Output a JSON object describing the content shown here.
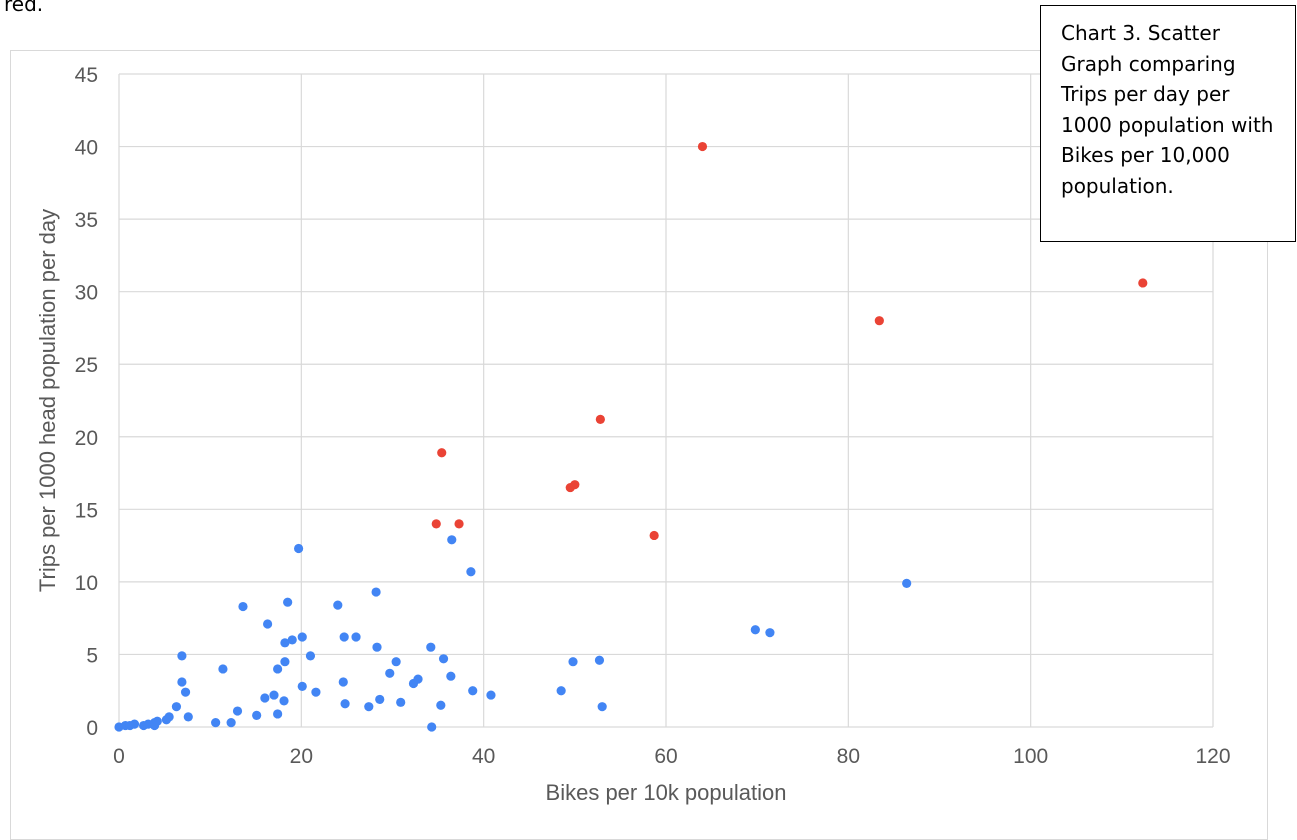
{
  "top_fragment": "red.",
  "caption": "Chart 3. Scatter Graph comparing Trips per day per 1000 population with Bikes per 10,000 population.",
  "colors": {
    "series_blue": "#4285f4",
    "series_red": "#ea4335",
    "grid": "#d9d9d9",
    "axis_text": "#595959"
  },
  "chart_data": {
    "type": "scatter",
    "xlabel": "Bikes per 10k population",
    "ylabel": "Trips per 1000 head population per day",
    "xlim": [
      0,
      120
    ],
    "ylim": [
      0,
      45
    ],
    "x_ticks": [
      "0",
      "20",
      "40",
      "60",
      "80",
      "100",
      "120"
    ],
    "y_ticks": [
      "0",
      "5",
      "10",
      "15",
      "20",
      "25",
      "30",
      "35",
      "40",
      "45"
    ],
    "grid": true,
    "legend": "none",
    "series": [
      {
        "color": "#4285f4",
        "points": [
          [
            0.0,
            0.0
          ],
          [
            0.7,
            0.1
          ],
          [
            1.2,
            0.1
          ],
          [
            1.7,
            0.2
          ],
          [
            2.7,
            0.1
          ],
          [
            3.2,
            0.2
          ],
          [
            3.9,
            0.3
          ],
          [
            3.9,
            0.1
          ],
          [
            4.2,
            0.4
          ],
          [
            5.2,
            0.5
          ],
          [
            5.5,
            0.7
          ],
          [
            6.3,
            1.4
          ],
          [
            6.9,
            4.9
          ],
          [
            6.9,
            3.1
          ],
          [
            7.3,
            2.4
          ],
          [
            7.6,
            0.7
          ],
          [
            10.6,
            0.3
          ],
          [
            11.4,
            4.0
          ],
          [
            12.3,
            0.3
          ],
          [
            13.0,
            1.1
          ],
          [
            13.6,
            8.3
          ],
          [
            15.1,
            0.8
          ],
          [
            16.0,
            2.0
          ],
          [
            16.3,
            7.1
          ],
          [
            17.0,
            2.2
          ],
          [
            17.4,
            4.0
          ],
          [
            17.4,
            0.9
          ],
          [
            18.1,
            1.8
          ],
          [
            18.2,
            5.8
          ],
          [
            18.2,
            4.5
          ],
          [
            18.5,
            8.6
          ],
          [
            19.0,
            6.0
          ],
          [
            19.7,
            12.3
          ],
          [
            20.1,
            6.2
          ],
          [
            20.1,
            2.8
          ],
          [
            21.0,
            4.9
          ],
          [
            21.6,
            2.4
          ],
          [
            24.0,
            8.4
          ],
          [
            24.6,
            3.1
          ],
          [
            24.7,
            6.2
          ],
          [
            24.8,
            1.6
          ],
          [
            26.0,
            6.2
          ],
          [
            27.4,
            1.4
          ],
          [
            28.2,
            9.3
          ],
          [
            28.3,
            5.5
          ],
          [
            28.6,
            1.9
          ],
          [
            29.7,
            3.7
          ],
          [
            30.4,
            4.5
          ],
          [
            30.9,
            1.7
          ],
          [
            32.3,
            3.0
          ],
          [
            32.8,
            3.3
          ],
          [
            34.2,
            5.5
          ],
          [
            34.3,
            0.0
          ],
          [
            35.3,
            1.5
          ],
          [
            35.6,
            4.7
          ],
          [
            36.4,
            3.5
          ],
          [
            36.5,
            12.9
          ],
          [
            38.6,
            10.7
          ],
          [
            38.8,
            2.5
          ],
          [
            40.8,
            2.2
          ],
          [
            48.5,
            2.5
          ],
          [
            49.8,
            4.5
          ],
          [
            52.7,
            4.6
          ],
          [
            53.0,
            1.4
          ],
          [
            69.8,
            6.7
          ],
          [
            71.4,
            6.5
          ],
          [
            86.4,
            9.9
          ]
        ]
      },
      {
        "color": "#ea4335",
        "points": [
          [
            34.8,
            14.0
          ],
          [
            35.4,
            18.9
          ],
          [
            37.3,
            14.0
          ],
          [
            49.5,
            16.5
          ],
          [
            50.0,
            16.7
          ],
          [
            52.8,
            21.2
          ],
          [
            58.7,
            13.2
          ],
          [
            64.0,
            40.0
          ],
          [
            83.4,
            28.0
          ],
          [
            112.3,
            30.6
          ]
        ]
      }
    ]
  }
}
